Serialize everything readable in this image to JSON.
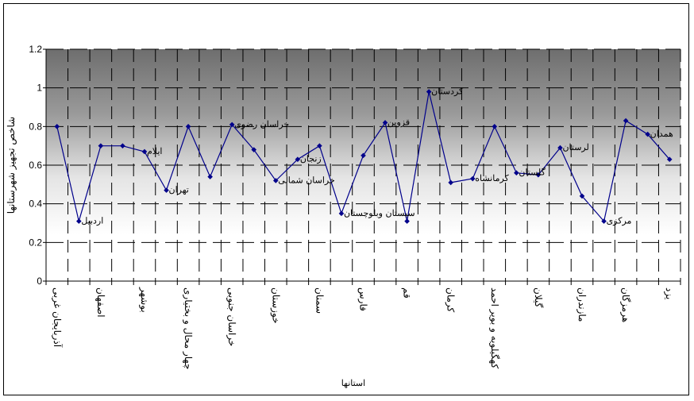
{
  "chart_data": {
    "type": "line",
    "title": "",
    "xlabel": "استانها",
    "ylabel": "شاخص تجهیز شهرستانها",
    "ylim": [
      0,
      1.2
    ],
    "yticks": [
      "0",
      "0.2",
      "0.4",
      "0.6",
      "0.8",
      "1",
      "1.2"
    ],
    "x_tick_labels": [
      "آذربایجان غربی",
      "اصفهان",
      "بوشهر",
      "چهار محال و بختیاری",
      "خراسان جنوبی",
      "خوزستان",
      "سمنان",
      "فارس",
      "قم",
      "کرمان",
      "کهگیلویه و بویر احمد",
      "گیلان",
      "مازندران",
      "هرمزگان",
      "یزد"
    ],
    "values": [
      0.8,
      0.31,
      0.7,
      0.7,
      0.67,
      0.47,
      0.8,
      0.54,
      0.81,
      0.68,
      0.52,
      0.63,
      0.7,
      0.35,
      0.65,
      0.82,
      0.31,
      0.98,
      0.51,
      0.53,
      0.8,
      0.56,
      0.55,
      0.69,
      0.44,
      0.31,
      0.83,
      0.76,
      0.63
    ],
    "point_labels": [
      {
        "index": 1,
        "text": "اردبیل"
      },
      {
        "index": 4,
        "text": "ایلام"
      },
      {
        "index": 5,
        "text": "تهران"
      },
      {
        "index": 8,
        "text": "خراسان رضوی"
      },
      {
        "index": 10,
        "text": "خراسان شمالی"
      },
      {
        "index": 11,
        "text": "زنجان"
      },
      {
        "index": 13,
        "text": "سیستان وبلوچستان"
      },
      {
        "index": 15,
        "text": "قزوین"
      },
      {
        "index": 17,
        "text": "کردستان"
      },
      {
        "index": 19,
        "text": "کرمانشاه"
      },
      {
        "index": 21,
        "text": "گلستان"
      },
      {
        "index": 23,
        "text": "لرستان"
      },
      {
        "index": 25,
        "text": "مرکزی"
      },
      {
        "index": 27,
        "text": "همدان"
      }
    ],
    "grid": true,
    "legend": "none",
    "line_color": "#00008b",
    "marker_color": "#00008b"
  }
}
